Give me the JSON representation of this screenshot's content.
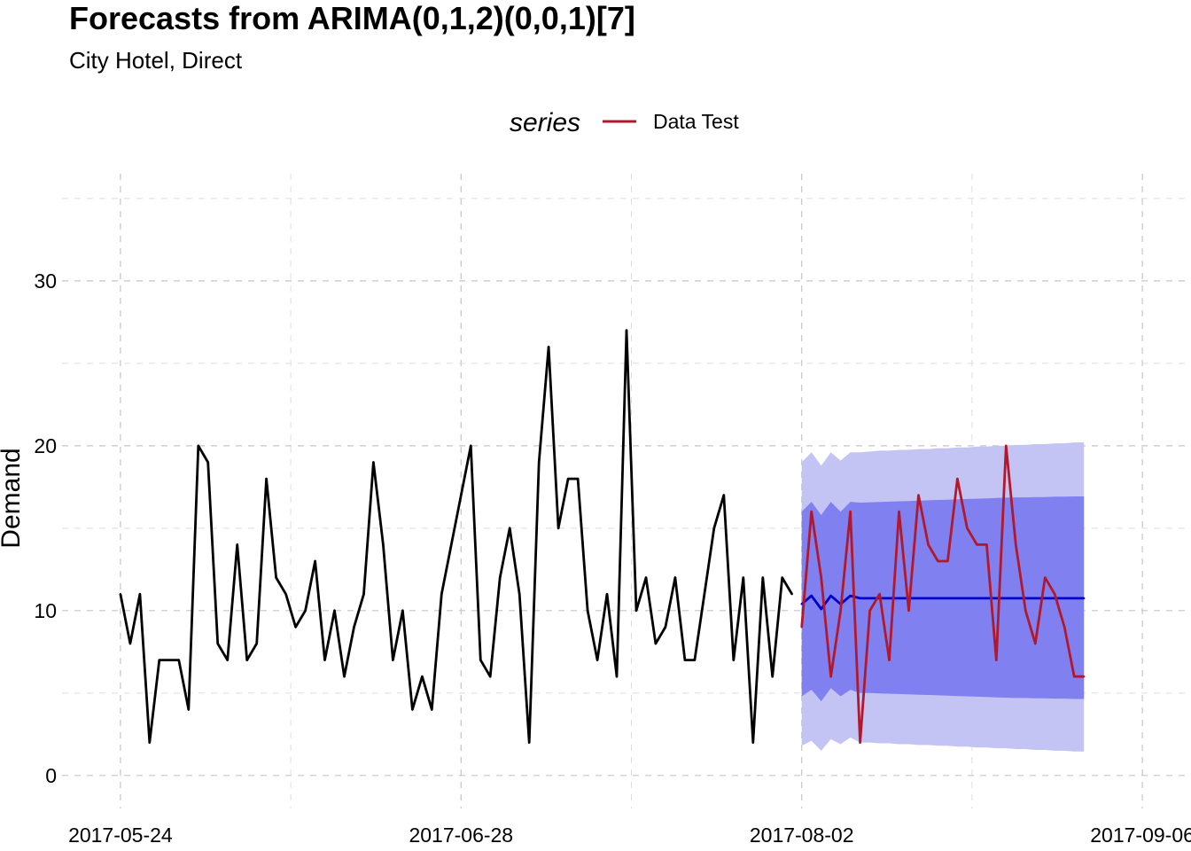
{
  "chart_data": {
    "type": "line",
    "title": "Forecasts from ARIMA(0,1,2)(0,0,1)[7]",
    "subtitle": "City Hotel, Direct",
    "ylabel": "Demand",
    "xlabel": "",
    "x_axis": {
      "type": "date",
      "range": [
        "2017-05-18",
        "2017-09-11"
      ],
      "ticks": [
        "2017-05-24",
        "2017-06-28",
        "2017-08-02",
        "2017-09-06"
      ],
      "tick_labels": [
        "2017-05-24",
        "2017-06-28",
        "2017-08-02",
        "2017-09-06"
      ]
    },
    "y_axis": {
      "range": [
        -2,
        36.5
      ],
      "ticks": [
        0,
        10,
        20,
        30
      ],
      "tick_labels": [
        "0",
        "10",
        "20",
        "30"
      ]
    },
    "grid": true,
    "legend": {
      "position": "top",
      "title": "series",
      "items": [
        {
          "label": "Data Test",
          "color": "#b2182b"
        }
      ]
    },
    "series": [
      {
        "role": "history",
        "color": "#000000",
        "start": "2017-05-24",
        "values": [
          11,
          8,
          11,
          2,
          7,
          7,
          7,
          4,
          20,
          19,
          8,
          7,
          14,
          7,
          8,
          18,
          12,
          11,
          9,
          10,
          13,
          7,
          10,
          6,
          9,
          11,
          19,
          14,
          7,
          10,
          4,
          6,
          4,
          11,
          14,
          17,
          20,
          7,
          6,
          12,
          15,
          11,
          2,
          19,
          26,
          15,
          18,
          18,
          10,
          7,
          11,
          6,
          27,
          10,
          12,
          8,
          9,
          12,
          7,
          7,
          11,
          15,
          17,
          7,
          12,
          2,
          12,
          6,
          12,
          11
        ]
      },
      {
        "role": "point-forecast",
        "color": "#0000cc",
        "start": "2017-08-02",
        "values": [
          10.4,
          10.9,
          10.1,
          10.9,
          10.4,
          10.9,
          10.75,
          10.75,
          10.75,
          10.75,
          10.75,
          10.75,
          10.75,
          10.75,
          10.75,
          10.75,
          10.75,
          10.75,
          10.75,
          10.75,
          10.75,
          10.75,
          10.75,
          10.75,
          10.75,
          10.75,
          10.75,
          10.75,
          10.75,
          10.75
        ]
      },
      {
        "name": "Data Test",
        "role": "test-data",
        "color": "#b2182b",
        "start": "2017-08-02",
        "values": [
          9,
          16,
          12,
          6,
          10,
          16,
          2,
          10,
          11,
          7,
          16,
          10,
          17,
          14,
          13,
          13,
          18,
          15,
          14,
          14,
          7,
          20,
          14,
          10,
          8,
          12,
          11,
          9,
          6,
          6
        ]
      }
    ],
    "intervals": [
      {
        "level": 95,
        "color": "#c4c4f4",
        "start": "2017-08-02",
        "lower": [
          1.8,
          2.1,
          1.5,
          2.2,
          1.9,
          2.3,
          2.0,
          2.0,
          1.95,
          1.95,
          1.9,
          1.9,
          1.85,
          1.85,
          1.8,
          1.8,
          1.75,
          1.75,
          1.7,
          1.7,
          1.65,
          1.65,
          1.6,
          1.6,
          1.55,
          1.55,
          1.5,
          1.5,
          1.45,
          1.45
        ],
        "upper": [
          19.0,
          19.6,
          18.8,
          19.6,
          19.1,
          19.6,
          19.6,
          19.65,
          19.7,
          19.7,
          19.75,
          19.75,
          19.8,
          19.8,
          19.85,
          19.85,
          19.9,
          19.9,
          19.95,
          19.95,
          20.0,
          20.0,
          20.05,
          20.05,
          20.1,
          20.1,
          20.15,
          20.15,
          20.2,
          20.2
        ]
      },
      {
        "level": 80,
        "color": "#8080f0",
        "start": "2017-08-02",
        "lower": [
          4.8,
          5.2,
          4.5,
          5.3,
          4.8,
          5.2,
          5.0,
          5.0,
          4.98,
          4.96,
          4.94,
          4.92,
          4.9,
          4.88,
          4.86,
          4.84,
          4.82,
          4.8,
          4.78,
          4.76,
          4.74,
          4.72,
          4.7,
          4.7,
          4.68,
          4.68,
          4.66,
          4.66,
          4.64,
          4.64
        ],
        "upper": [
          16.0,
          16.6,
          15.8,
          16.6,
          16.0,
          16.6,
          16.55,
          16.57,
          16.59,
          16.61,
          16.63,
          16.65,
          16.67,
          16.69,
          16.71,
          16.73,
          16.75,
          16.77,
          16.79,
          16.81,
          16.83,
          16.85,
          16.87,
          16.87,
          16.89,
          16.89,
          16.91,
          16.91,
          16.93,
          16.93
        ]
      }
    ]
  }
}
